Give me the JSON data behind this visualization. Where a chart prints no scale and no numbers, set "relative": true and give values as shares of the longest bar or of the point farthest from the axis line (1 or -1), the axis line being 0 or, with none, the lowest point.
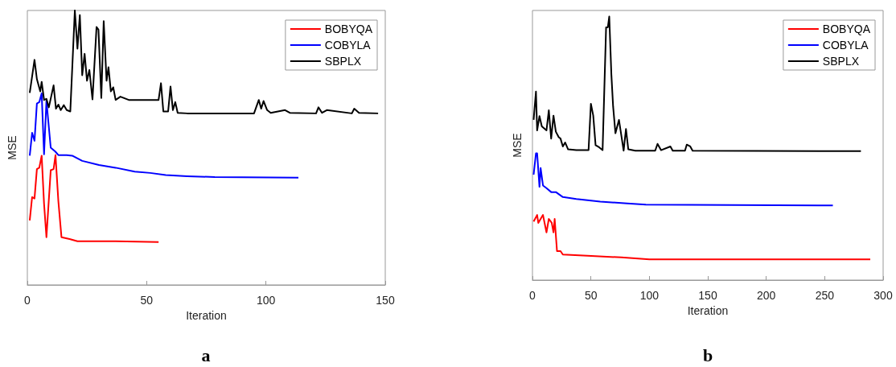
{
  "chart_data": [
    {
      "type": "line",
      "relative": true,
      "xlabel": "Iteration",
      "ylabel": "MSE",
      "xlim": [
        0,
        150
      ],
      "xticks": [
        0,
        50,
        100,
        150
      ],
      "legend": "top right",
      "grid": false,
      "annotations": [
        "a"
      ],
      "series": [
        {
          "name": "BOBYQA",
          "color": "#ff0000",
          "x": [
            1,
            2,
            3,
            4,
            5,
            6,
            7,
            8,
            9.8,
            11,
            11.8,
            13,
            14.3,
            17.7,
            21,
            28,
            37,
            55
          ],
          "values": [
            0.235,
            0.32,
            0.315,
            0.422,
            0.427,
            0.471,
            0.296,
            0.174,
            0.418,
            0.422,
            0.473,
            0.305,
            0.174,
            0.167,
            0.159,
            0.159,
            0.159,
            0.156
          ]
        },
        {
          "name": "COBYLA",
          "color": "#0000ff",
          "x": [
            1,
            2,
            3,
            4,
            5,
            6,
            7,
            8,
            9.8,
            11.7,
            13,
            16.5,
            18.8,
            23,
            30,
            37,
            45,
            51.5,
            58,
            67,
            78.5,
            113.6
          ],
          "values": [
            0.471,
            0.554,
            0.525,
            0.661,
            0.666,
            0.698,
            0.476,
            0.671,
            0.5,
            0.486,
            0.473,
            0.473,
            0.471,
            0.452,
            0.437,
            0.427,
            0.413,
            0.408,
            0.4,
            0.396,
            0.393,
            0.391
          ]
        },
        {
          "name": "SBPLX",
          "color": "#000000",
          "x": [
            1,
            3,
            4,
            5.4,
            6,
            7,
            8,
            9,
            11,
            12,
            13,
            14,
            15.3,
            16.5,
            18,
            19.9,
            21,
            22,
            23,
            24,
            25,
            26,
            27.3,
            29,
            29.8,
            31,
            32,
            33.2,
            34,
            35,
            36,
            37,
            39,
            42.5,
            55,
            56,
            57,
            59,
            60,
            61,
            62,
            63,
            67,
            95,
            97,
            98,
            99,
            100.5,
            102,
            108,
            110,
            121,
            122,
            123.5,
            125.5,
            136,
            137,
            139,
            147
          ],
          "values": [
            0.7,
            0.82,
            0.75,
            0.705,
            0.74,
            0.674,
            0.678,
            0.647,
            0.727,
            0.642,
            0.657,
            0.637,
            0.655,
            0.637,
            0.632,
            1,
            0.861,
            0.983,
            0.764,
            0.842,
            0.744,
            0.783,
            0.676,
            0.94,
            0.93,
            0.681,
            0.961,
            0.744,
            0.793,
            0.705,
            0.72,
            0.674,
            0.686,
            0.674,
            0.674,
            0.735,
            0.632,
            0.632,
            0.723,
            0.637,
            0.666,
            0.627,
            0.625,
            0.625,
            0.674,
            0.642,
            0.67,
            0.637,
            0.627,
            0.637,
            0.627,
            0.625,
            0.647,
            0.627,
            0.637,
            0.625,
            0.642,
            0.627,
            0.625
          ]
        }
      ]
    },
    {
      "type": "line",
      "relative": true,
      "xlabel": "Iteration",
      "ylabel": "MSE",
      "xlim": [
        0,
        300
      ],
      "xticks": [
        0,
        50,
        100,
        150,
        200,
        250,
        300
      ],
      "legend": "top right",
      "grid": false,
      "annotations": [
        "b"
      ],
      "series": [
        {
          "name": "BOBYQA",
          "color": "#ff0000",
          "x": [
            1,
            4,
            5,
            9,
            12,
            14,
            16.5,
            18,
            19,
            21,
            24,
            26,
            47,
            76,
            100,
            289
          ],
          "values": [
            0.222,
            0.247,
            0.217,
            0.247,
            0.181,
            0.232,
            0.217,
            0.181,
            0.232,
            0.11,
            0.11,
            0.097,
            0.092,
            0.086,
            0.079,
            0.079
          ]
        },
        {
          "name": "COBYLA",
          "color": "#0000ff",
          "x": [
            1,
            3,
            4,
            6,
            7,
            9,
            12,
            16,
            20,
            26,
            37.5,
            58,
            81,
            97,
            257
          ],
          "values": [
            0.4,
            0.481,
            0.481,
            0.354,
            0.425,
            0.359,
            0.349,
            0.334,
            0.334,
            0.315,
            0.308,
            0.298,
            0.291,
            0.286,
            0.283
          ]
        },
        {
          "name": "SBPLX",
          "color": "#000000",
          "x": [
            1,
            3,
            4,
            6,
            8,
            12,
            14,
            16,
            18,
            20,
            22.5,
            24,
            26,
            28,
            30.5,
            37.5,
            48,
            50,
            52,
            54,
            57,
            60,
            63,
            64.5,
            65.7,
            67.5,
            69,
            71,
            74,
            78,
            80,
            82,
            88,
            105,
            107,
            110,
            118,
            120,
            130.5,
            132,
            135,
            137,
            281
          ],
          "values": [
            0.608,
            0.715,
            0.568,
            0.622,
            0.583,
            0.568,
            0.644,
            0.537,
            0.624,
            0.563,
            0.542,
            0.537,
            0.507,
            0.522,
            0.496,
            0.493,
            0.493,
            0.669,
            0.624,
            0.512,
            0.504,
            0.493,
            0.959,
            0.959,
            1,
            0.781,
            0.659,
            0.557,
            0.608,
            0.491,
            0.573,
            0.496,
            0.491,
            0.491,
            0.517,
            0.493,
            0.507,
            0.491,
            0.491,
            0.514,
            0.507,
            0.491,
            0.489
          ]
        }
      ]
    }
  ]
}
